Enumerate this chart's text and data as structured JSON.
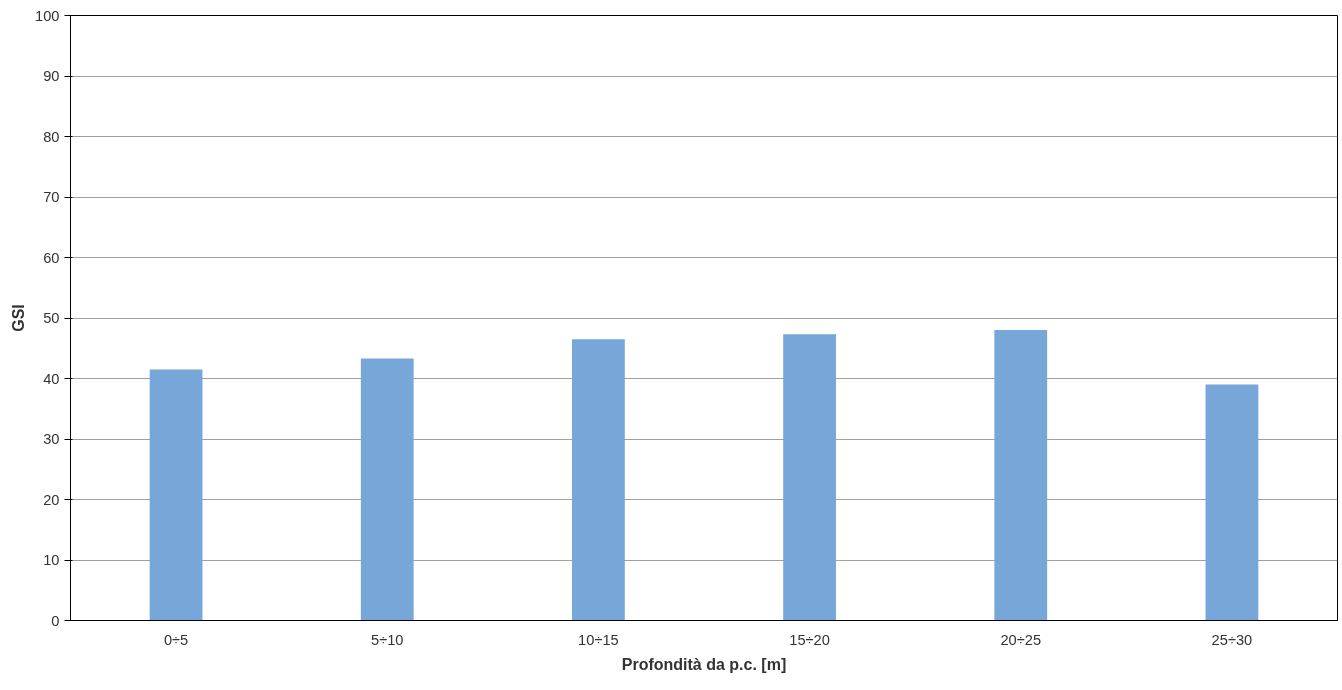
{
  "chart_data": {
    "type": "bar",
    "xlabel": "Profondità da p.c. [m]",
    "ylabel": "GSI",
    "categories": [
      "0÷5",
      "5÷10",
      "10÷15",
      "15÷20",
      "20÷25",
      "25÷30"
    ],
    "values": [
      41.5,
      43.3,
      46.5,
      47.3,
      48,
      39
    ],
    "color": "#77a7d8",
    "ylim": [
      0,
      100
    ],
    "yticks": [
      0,
      10,
      20,
      30,
      40,
      50,
      60,
      70,
      80,
      90,
      100
    ],
    "grid": "y"
  }
}
